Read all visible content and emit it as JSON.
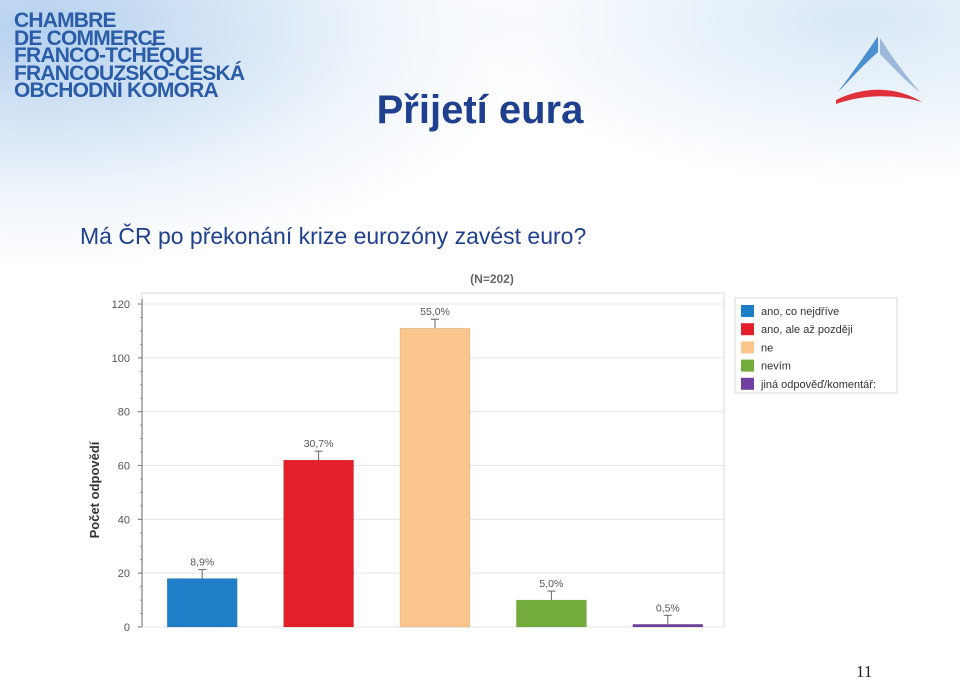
{
  "logo": {
    "lines": [
      "CHAMBRE",
      "DE COMMERCE",
      "FRANCO-TCHÈQUE",
      "FRANCOUZSKO-ČESKÁ",
      "OBCHODNÍ KOMORA"
    ],
    "color": "#2a5ca8"
  },
  "slide": {
    "title": "Přijetí eura",
    "question": "Má ČR po překonání krize eurozóny zavést euro?",
    "page_number": "11"
  },
  "chart_data": {
    "type": "bar",
    "title": "(N=202)",
    "ylabel": "Počet odpovědí",
    "xlabel": "",
    "ylim": [
      0,
      120
    ],
    "yticks": [
      0,
      20,
      40,
      60,
      80,
      100,
      120
    ],
    "grid": true,
    "legend_position": "top-right",
    "categories": [
      "ano, co nejdříve",
      "ano, ale až později",
      "ne",
      "nevím",
      "jiná odpověď/komentář:"
    ],
    "values": [
      18,
      62,
      111,
      10,
      1
    ],
    "data_labels": [
      "8,9%",
      "30,7%",
      "55,0%",
      "5,0%",
      "0,5%"
    ],
    "colors": [
      "#1f7fc6",
      "#e3202a",
      "#fbc58e",
      "#72ad3c",
      "#7040a0"
    ]
  }
}
